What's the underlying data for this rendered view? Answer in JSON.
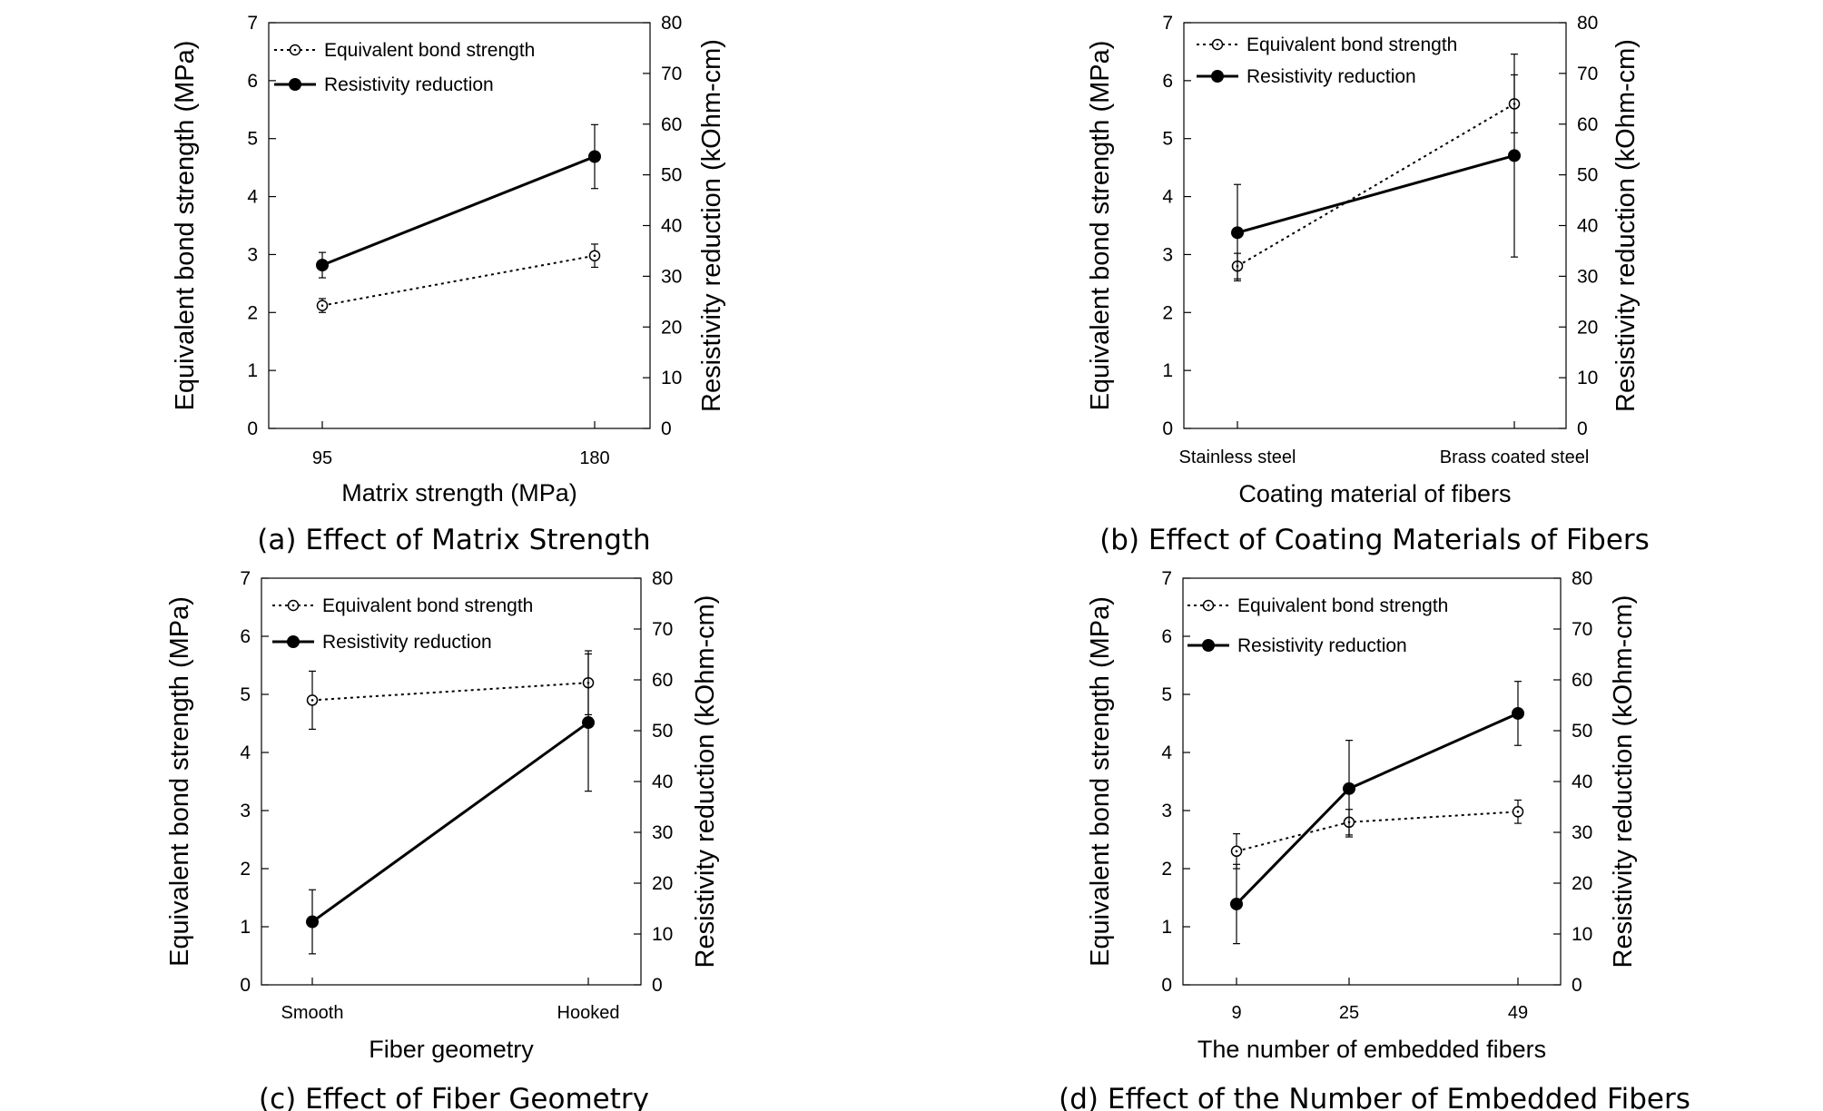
{
  "figure": {
    "left_axis_label": "Equivalent bond strength (MPa)",
    "right_axis_label": "Resistivity reduction (kOhm-cm)",
    "legend": [
      "Equivalent bond strength",
      "Resistivity reduction"
    ],
    "left_ticks": [
      "0",
      "1",
      "2",
      "3",
      "4",
      "5",
      "6",
      "7"
    ],
    "right_ticks": [
      "0",
      "10",
      "20",
      "30",
      "40",
      "50",
      "60",
      "70",
      "80"
    ]
  },
  "chart_data": [
    {
      "type": "line",
      "caption": "(a) Effect of Matrix Strength",
      "xlabel": "Matrix strength (MPa)",
      "ylabel": "Equivalent bond strength (MPa)",
      "y2label": "Resistivity reduction (kOhm-cm)",
      "categories": [
        "95",
        "180"
      ],
      "ylim": [
        0,
        7
      ],
      "y2lim": [
        0,
        80
      ],
      "legend_position": "top-left",
      "series": [
        {
          "name": "Equivalent bond strength",
          "axis": "left",
          "style": "dotted-open",
          "values": [
            2.12,
            2.98
          ],
          "errors": [
            0.12,
            0.2
          ]
        },
        {
          "name": "Resistivity reduction",
          "axis": "right",
          "style": "solid-filled",
          "values": [
            32.2,
            53.6
          ],
          "errors": [
            2.5,
            6.3
          ]
        }
      ]
    },
    {
      "type": "line",
      "caption": "(b) Effect of Coating Materials of Fibers",
      "xlabel": "Coating material of fibers",
      "ylabel": "Equivalent bond strength (MPa)",
      "y2label": "Resistivity reduction (kOhm-cm)",
      "categories": [
        "Stainless steel",
        "Brass coated steel"
      ],
      "ylim": [
        0,
        7
      ],
      "y2lim": [
        0,
        80
      ],
      "legend_position": "top-left",
      "series": [
        {
          "name": "Equivalent bond strength",
          "axis": "left",
          "style": "dotted-open",
          "values": [
            2.8,
            5.6
          ],
          "errors": [
            0.22,
            0.5
          ]
        },
        {
          "name": "Resistivity reduction",
          "axis": "right",
          "style": "solid-filled",
          "values": [
            38.6,
            53.8
          ],
          "errors": [
            9.5,
            20.0
          ]
        }
      ]
    },
    {
      "type": "line",
      "caption": "(c) Effect of Fiber Geometry",
      "xlabel": "Fiber geometry",
      "ylabel": "Equivalent bond strength (MPa)",
      "y2label": "Resistivity reduction (kOhm-cm)",
      "categories": [
        "Smooth",
        "Hooked"
      ],
      "ylim": [
        0,
        7
      ],
      "y2lim": [
        0,
        80
      ],
      "legend_position": "top-left",
      "series": [
        {
          "name": "Equivalent bond strength",
          "axis": "left",
          "style": "dotted-open",
          "values": [
            4.9,
            5.2
          ],
          "errors": [
            0.5,
            0.55
          ]
        },
        {
          "name": "Resistivity reduction",
          "axis": "right",
          "style": "solid-filled",
          "values": [
            12.4,
            51.6
          ],
          "errors": [
            6.3,
            13.5
          ]
        }
      ]
    },
    {
      "type": "line",
      "caption": "(d) Effect of the Number of Embedded Fibers",
      "xlabel": "The number of embedded fibers",
      "ylabel": "Equivalent bond strength (MPa)",
      "y2label": "Resistivity reduction (kOhm-cm)",
      "categories": [
        "9",
        "25",
        "49"
      ],
      "x": [
        9,
        25,
        49
      ],
      "ylim": [
        0,
        7
      ],
      "y2lim": [
        0,
        80
      ],
      "legend_position": "top-left",
      "series": [
        {
          "name": "Equivalent bond strength",
          "axis": "left",
          "style": "dotted-open",
          "values": [
            2.3,
            2.8,
            2.98
          ],
          "errors": [
            0.3,
            0.22,
            0.2
          ]
        },
        {
          "name": "Resistivity reduction",
          "axis": "right",
          "style": "solid-filled",
          "values": [
            15.9,
            38.6,
            53.4
          ],
          "errors": [
            7.8,
            9.5,
            6.3
          ]
        }
      ]
    }
  ]
}
